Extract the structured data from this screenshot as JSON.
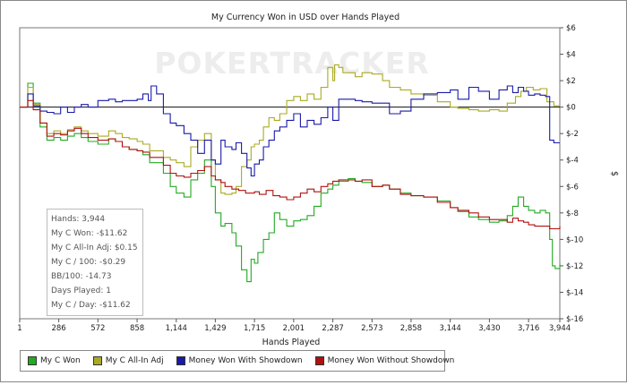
{
  "chart_data": {
    "type": "line",
    "title": "My Currency Won in USD over Hands Played",
    "xlabel": "Hands Played",
    "ylabel": "$",
    "watermark": "POKERTRACKER",
    "xlim": [
      1,
      3944
    ],
    "ylim": [
      -16,
      6
    ],
    "x_ticks": [
      1,
      286,
      572,
      858,
      1144,
      1429,
      1715,
      2001,
      2287,
      2573,
      2858,
      3144,
      3430,
      3716,
      3944
    ],
    "x_tick_labels": [
      "1",
      "286",
      "572",
      "858",
      "1,144",
      "1,429",
      "1,715",
      "2,001",
      "2,287",
      "2,573",
      "2,858",
      "3,144",
      "3,430",
      "3,716",
      "3,944"
    ],
    "y_ticks": [
      6,
      4,
      2,
      0,
      -2,
      -4,
      -6,
      -8,
      -10,
      -12,
      -14,
      -16
    ],
    "y_tick_labels": [
      "$6",
      "$4",
      "$2",
      "$0",
      "$-2",
      "$-4",
      "$-6",
      "$-8",
      "$-10",
      "$-12",
      "$-14",
      "$-16"
    ],
    "grid": false,
    "zero_line": true,
    "legend_position": "bottom",
    "series": [
      {
        "name": "My C Won",
        "color": "#22aa22",
        "x": [
          1,
          60,
          100,
          150,
          200,
          250,
          300,
          350,
          400,
          450,
          500,
          572,
          650,
          700,
          750,
          800,
          858,
          900,
          950,
          1000,
          1050,
          1100,
          1144,
          1200,
          1250,
          1300,
          1350,
          1400,
          1429,
          1470,
          1500,
          1550,
          1580,
          1620,
          1660,
          1690,
          1715,
          1740,
          1780,
          1820,
          1860,
          1900,
          1950,
          2001,
          2050,
          2100,
          2150,
          2200,
          2250,
          2287,
          2330,
          2400,
          2450,
          2500,
          2573,
          2650,
          2700,
          2780,
          2858,
          2950,
          3050,
          3144,
          3200,
          3280,
          3350,
          3430,
          3500,
          3560,
          3600,
          3640,
          3680,
          3716,
          3760,
          3800,
          3840,
          3870,
          3890,
          3910,
          3944
        ],
        "values": [
          0,
          1.8,
          0.3,
          -1.5,
          -2.5,
          -2.3,
          -2.5,
          -2.2,
          -2.0,
          -2.3,
          -2.6,
          -2.8,
          -2.4,
          -2.6,
          -3.0,
          -3.2,
          -3.3,
          -3.6,
          -4.2,
          -4.2,
          -5.0,
          -6.0,
          -6.5,
          -6.8,
          -5.5,
          -5.0,
          -4.0,
          -6.0,
          -8.0,
          -9.0,
          -8.8,
          -9.5,
          -10.5,
          -12.3,
          -13.2,
          -11.5,
          -11.8,
          -11.0,
          -10.0,
          -9.5,
          -8.0,
          -8.5,
          -9.0,
          -8.6,
          -8.5,
          -8.2,
          -7.5,
          -6.5,
          -6.2,
          -5.9,
          -5.6,
          -5.4,
          -5.6,
          -5.7,
          -6.0,
          -5.9,
          -6.2,
          -6.5,
          -6.7,
          -6.8,
          -7.1,
          -7.6,
          -7.9,
          -8.3,
          -8.5,
          -8.7,
          -8.6,
          -8.2,
          -7.5,
          -6.8,
          -7.5,
          -7.8,
          -8.0,
          -7.8,
          -8.0,
          -10.0,
          -12.0,
          -12.2,
          -11.8
        ]
      },
      {
        "name": "My C All-In Adj",
        "color": "#aaaa22",
        "x": [
          1,
          60,
          100,
          150,
          200,
          250,
          300,
          350,
          400,
          450,
          500,
          572,
          650,
          700,
          750,
          800,
          858,
          900,
          950,
          1000,
          1050,
          1100,
          1144,
          1200,
          1250,
          1300,
          1350,
          1400,
          1429,
          1470,
          1500,
          1550,
          1580,
          1620,
          1660,
          1690,
          1715,
          1750,
          1780,
          1820,
          1860,
          1900,
          1950,
          2001,
          2050,
          2100,
          2150,
          2200,
          2250,
          2287,
          2300,
          2330,
          2360,
          2400,
          2450,
          2500,
          2573,
          2650,
          2700,
          2780,
          2858,
          2950,
          3050,
          3144,
          3200,
          3280,
          3350,
          3430,
          3500,
          3560,
          3620,
          3660,
          3700,
          3716,
          3750,
          3800,
          3850,
          3900,
          3944
        ],
        "values": [
          0,
          1.5,
          0.2,
          -1.2,
          -2.0,
          -1.8,
          -2.0,
          -1.7,
          -1.5,
          -1.8,
          -2.0,
          -2.2,
          -1.8,
          -2.0,
          -2.3,
          -2.4,
          -2.6,
          -2.8,
          -3.3,
          -3.3,
          -3.8,
          -4.0,
          -4.2,
          -4.5,
          -3.0,
          -2.5,
          -2.0,
          -4.0,
          -5.5,
          -6.5,
          -6.6,
          -6.5,
          -6.0,
          -4.5,
          -4.0,
          -3.0,
          -2.8,
          -2.5,
          -1.5,
          -0.8,
          -1.0,
          -0.5,
          0.5,
          0.8,
          0.5,
          1.0,
          0.6,
          1.5,
          3.0,
          2.0,
          3.2,
          3.0,
          2.6,
          2.6,
          2.3,
          2.6,
          2.5,
          2.0,
          1.5,
          1.3,
          1.0,
          0.9,
          0.4,
          0.0,
          -0.1,
          -0.2,
          -0.3,
          -0.2,
          -0.3,
          0.3,
          0.8,
          1.2,
          1.5,
          1.5,
          1.3,
          1.4,
          0.4,
          0.1,
          0.1
        ]
      },
      {
        "name": "Money Won With Showdown",
        "color": "#1a1aa8",
        "x": [
          1,
          60,
          100,
          150,
          200,
          250,
          300,
          350,
          400,
          450,
          500,
          572,
          650,
          700,
          750,
          800,
          858,
          900,
          940,
          960,
          1000,
          1050,
          1100,
          1144,
          1200,
          1250,
          1300,
          1350,
          1400,
          1429,
          1470,
          1500,
          1550,
          1580,
          1620,
          1660,
          1690,
          1715,
          1750,
          1780,
          1820,
          1860,
          1900,
          1950,
          2001,
          2050,
          2100,
          2150,
          2200,
          2250,
          2287,
          2330,
          2400,
          2450,
          2500,
          2573,
          2650,
          2700,
          2780,
          2858,
          2950,
          3050,
          3144,
          3200,
          3280,
          3350,
          3430,
          3500,
          3560,
          3600,
          3640,
          3680,
          3716,
          3760,
          3800,
          3840,
          3870,
          3900,
          3944
        ],
        "values": [
          0,
          1.0,
          0.1,
          -0.3,
          -0.4,
          -0.5,
          0.0,
          -0.4,
          0.0,
          0.2,
          0.0,
          0.5,
          0.6,
          0.4,
          0.5,
          0.5,
          0.6,
          1.0,
          0.5,
          1.6,
          1.0,
          -0.5,
          -1.2,
          -1.4,
          -2.0,
          -2.5,
          -3.5,
          -2.5,
          -4.0,
          -4.3,
          -2.5,
          -3.0,
          -3.2,
          -2.7,
          -3.5,
          -4.6,
          -5.2,
          -4.3,
          -4.0,
          -3.0,
          -2.5,
          -1.8,
          -1.5,
          -1.0,
          -0.5,
          -1.5,
          -1.0,
          -1.3,
          -0.8,
          0.0,
          -1.0,
          0.6,
          0.6,
          0.5,
          0.4,
          0.3,
          0.3,
          -0.5,
          -0.3,
          0.6,
          1.0,
          1.1,
          1.3,
          0.6,
          1.5,
          1.2,
          0.6,
          1.3,
          1.6,
          1.1,
          1.5,
          1.2,
          0.9,
          1.0,
          0.9,
          0.8,
          -2.5,
          -2.7,
          -2.7
        ]
      },
      {
        "name": "Money Won Without Showdown",
        "color": "#b01010",
        "x": [
          1,
          60,
          100,
          150,
          200,
          250,
          300,
          350,
          400,
          450,
          500,
          572,
          650,
          700,
          750,
          800,
          858,
          900,
          950,
          1000,
          1050,
          1100,
          1144,
          1200,
          1250,
          1300,
          1350,
          1400,
          1429,
          1470,
          1500,
          1550,
          1600,
          1650,
          1700,
          1715,
          1750,
          1800,
          1850,
          1900,
          1950,
          2001,
          2050,
          2100,
          2150,
          2200,
          2250,
          2287,
          2330,
          2400,
          2450,
          2500,
          2573,
          2650,
          2700,
          2780,
          2858,
          2950,
          3050,
          3144,
          3200,
          3280,
          3350,
          3430,
          3500,
          3560,
          3600,
          3640,
          3680,
          3716,
          3760,
          3800,
          3840,
          3870,
          3900,
          3944
        ],
        "values": [
          0,
          0.5,
          -0.2,
          -1.2,
          -2.2,
          -2.0,
          -2.1,
          -1.8,
          -1.6,
          -2.0,
          -2.3,
          -2.5,
          -2.4,
          -2.6,
          -3.0,
          -3.2,
          -3.3,
          -3.4,
          -3.8,
          -3.8,
          -4.4,
          -5.0,
          -5.2,
          -5.3,
          -5.0,
          -4.8,
          -4.5,
          -5.2,
          -5.5,
          -5.7,
          -6.0,
          -6.2,
          -6.3,
          -6.5,
          -6.5,
          -6.4,
          -6.6,
          -6.3,
          -6.7,
          -6.8,
          -7.0,
          -6.8,
          -6.5,
          -6.2,
          -6.4,
          -6.0,
          -5.8,
          -5.6,
          -5.5,
          -5.5,
          -5.6,
          -5.5,
          -6.0,
          -5.9,
          -6.2,
          -6.6,
          -6.7,
          -6.8,
          -7.2,
          -7.6,
          -7.8,
          -8.0,
          -8.3,
          -8.5,
          -8.5,
          -8.7,
          -8.4,
          -8.6,
          -8.7,
          -8.9,
          -9.0,
          -9.0,
          -9.0,
          -9.2,
          -9.2,
          -9.0
        ]
      }
    ]
  },
  "stats_box": {
    "lines": [
      "Hands: 3,944",
      "My C Won: -$11.62",
      "My C All-In Adj: $0.15",
      "My C / 100: -$0.29",
      "BB/100: -14.73",
      "Days Played: 1",
      "My C / Day: -$11.62"
    ]
  }
}
